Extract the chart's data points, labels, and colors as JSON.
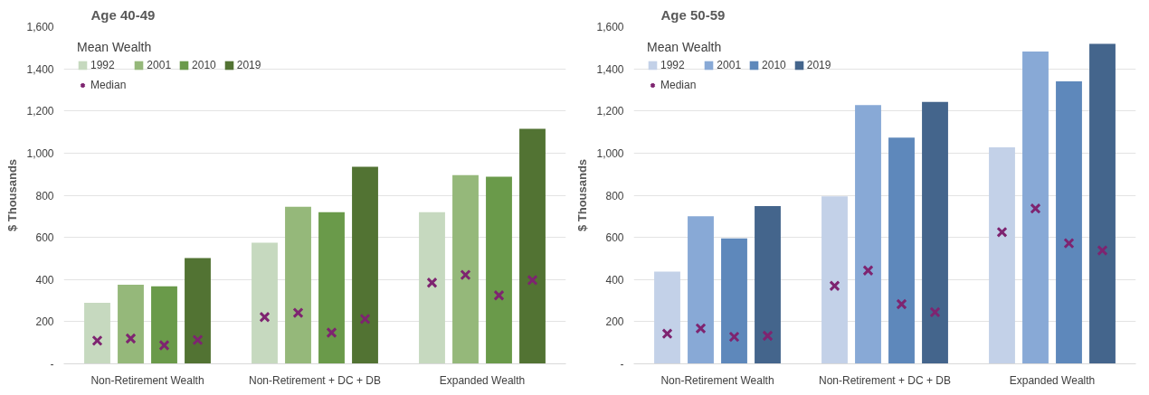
{
  "chart_data": [
    {
      "type": "bar",
      "title": "Age 40-49",
      "ylabel": "$ Thousands",
      "legend_title": "Mean Wealth",
      "categories": [
        "Non-Retirement Wealth",
        "Non-Retirement + DC + DB",
        "Expanded Wealth"
      ],
      "series": [
        {
          "name": "1992",
          "color": "#c6d9bf",
          "values": [
            290,
            575,
            720
          ]
        },
        {
          "name": "2001",
          "color": "#95b87a",
          "values": [
            375,
            745,
            895
          ]
        },
        {
          "name": "2010",
          "color": "#6a9a4a",
          "values": [
            368,
            720,
            888
          ]
        },
        {
          "name": "2019",
          "color": "#527333",
          "values": [
            502,
            935,
            1115
          ]
        },
        {
          "name": "Median",
          "type": "scatter",
          "color": "#7e2470",
          "values": [
            110,
            222,
            385
          ]
        },
        {
          "type": "scatter",
          "color": "#7e2470",
          "values": [
            120,
            242,
            422
          ]
        },
        {
          "type": "scatter",
          "color": "#7e2470",
          "values": [
            88,
            148,
            325
          ]
        },
        {
          "type": "scatter",
          "color": "#7e2470",
          "values": [
            113,
            213,
            397
          ]
        }
      ],
      "marker": "cross",
      "ylim": [
        0,
        1600
      ],
      "yticks": [
        {
          "value": 0,
          "label": "-"
        },
        200,
        400,
        600,
        800,
        {
          "value": 1000,
          "label": "1,000"
        },
        {
          "value": 1200,
          "label": "1,200"
        },
        {
          "value": 1400,
          "label": "1,400"
        },
        {
          "value": 1600,
          "label": "1,600"
        }
      ],
      "grid": "y",
      "legend": "top left"
    },
    {
      "type": "bar",
      "title": "Age 50-59",
      "ylabel": "$ Thousands",
      "legend_title": "Mean Wealth",
      "categories": [
        "Non-Retirement Wealth",
        "Non-Retirement + DC + DB",
        "Expanded Wealth"
      ],
      "series": [
        {
          "name": "1992",
          "color": "#c3d1e8",
          "values": [
            438,
            795,
            1027
          ]
        },
        {
          "name": "2001",
          "color": "#88a9d6",
          "values": [
            700,
            1228,
            1482
          ]
        },
        {
          "name": "2010",
          "color": "#5e88bb",
          "values": [
            595,
            1073,
            1340
          ]
        },
        {
          "name": "2019",
          "color": "#44658c",
          "values": [
            748,
            1243,
            1518
          ]
        },
        {
          "name": "Median",
          "type": "scatter",
          "color": "#7e2470",
          "values": [
            143,
            370,
            625
          ]
        },
        {
          "type": "scatter",
          "color": "#7e2470",
          "values": [
            168,
            443,
            737
          ]
        },
        {
          "type": "scatter",
          "color": "#7e2470",
          "values": [
            128,
            283,
            572
          ]
        },
        {
          "type": "scatter",
          "color": "#7e2470",
          "values": [
            133,
            245,
            538
          ]
        }
      ],
      "marker": "cross",
      "ylim": [
        0,
        1600
      ],
      "yticks": [
        {
          "value": 0,
          "label": "-"
        },
        200,
        400,
        600,
        800,
        {
          "value": 1000,
          "label": "1,000"
        },
        {
          "value": 1200,
          "label": "1,200"
        },
        {
          "value": 1400,
          "label": "1,400"
        },
        {
          "value": 1600,
          "label": "1,600"
        }
      ],
      "grid": "y",
      "legend": "top left"
    }
  ]
}
